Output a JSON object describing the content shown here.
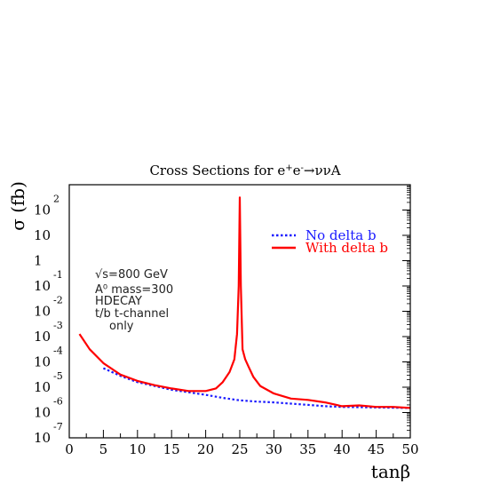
{
  "chart_data": {
    "type": "line",
    "title": "Cross Sections for e⁺e⁻→ννA",
    "xlabel": "tanβ",
    "ylabel": "σ (fb)",
    "xlim": [
      0,
      50
    ],
    "ylim_log10": [
      -7,
      3
    ],
    "y_scale": "log",
    "x_ticks": [
      0,
      5,
      10,
      15,
      20,
      25,
      30,
      35,
      40,
      45,
      50
    ],
    "y_ticks": [
      {
        "exp": -7,
        "mantissa": "10",
        "sup": "-7"
      },
      {
        "exp": -6,
        "mantissa": "10",
        "sup": "-6"
      },
      {
        "exp": -5,
        "mantissa": "10",
        "sup": "-5"
      },
      {
        "exp": -4,
        "mantissa": "10",
        "sup": "-4"
      },
      {
        "exp": -3,
        "mantissa": "10",
        "sup": "-3"
      },
      {
        "exp": -2,
        "mantissa": "10",
        "sup": "-2"
      },
      {
        "exp": -1,
        "mantissa": "10",
        "sup": "-1"
      },
      {
        "exp": 0,
        "mantissa": "1",
        "sup": ""
      },
      {
        "exp": 1,
        "mantissa": "10",
        "sup": ""
      },
      {
        "exp": 2,
        "mantissa": "10",
        "sup": "2"
      }
    ],
    "legend_position": "top-right",
    "annotation": [
      "√s=800 GeV",
      "A⁰ mass=300",
      "HDECAY",
      "t/b  t-channel",
      "only"
    ],
    "series": [
      {
        "name": "No delta b",
        "color": "#1a1aff",
        "style": "dotted",
        "x": [
          5,
          7.5,
          10,
          12.5,
          15,
          17.5,
          20,
          22.5,
          25,
          27.5,
          30,
          32.5,
          35,
          37.5,
          40,
          42.5,
          45,
          47.5,
          50
        ],
        "log10y": [
          -4.25,
          -4.55,
          -4.8,
          -4.95,
          -5.1,
          -5.2,
          -5.3,
          -5.42,
          -5.52,
          -5.57,
          -5.6,
          -5.65,
          -5.7,
          -5.75,
          -5.78,
          -5.79,
          -5.8,
          -5.81,
          -5.82
        ]
      },
      {
        "name": "With delta b",
        "color": "#ff0000",
        "style": "solid",
        "x": [
          1.5,
          3,
          5,
          7.5,
          10,
          12.5,
          15,
          17.5,
          20,
          21.5,
          22.5,
          23.5,
          24.2,
          24.6,
          24.85,
          25,
          25.15,
          25.4,
          25.8,
          26.3,
          27,
          28,
          30,
          32.5,
          35,
          37.5,
          40,
          42.5,
          45,
          47.5,
          50
        ],
        "log10y": [
          -2.9,
          -3.5,
          -4.05,
          -4.5,
          -4.75,
          -4.92,
          -5.05,
          -5.15,
          -5.15,
          -5.05,
          -4.8,
          -4.4,
          -3.9,
          -2.9,
          -1.0,
          2.5,
          -1.0,
          -3.5,
          -3.9,
          -4.2,
          -4.6,
          -4.95,
          -5.25,
          -5.45,
          -5.5,
          -5.6,
          -5.75,
          -5.72,
          -5.78,
          -5.78,
          -5.82
        ]
      }
    ]
  }
}
